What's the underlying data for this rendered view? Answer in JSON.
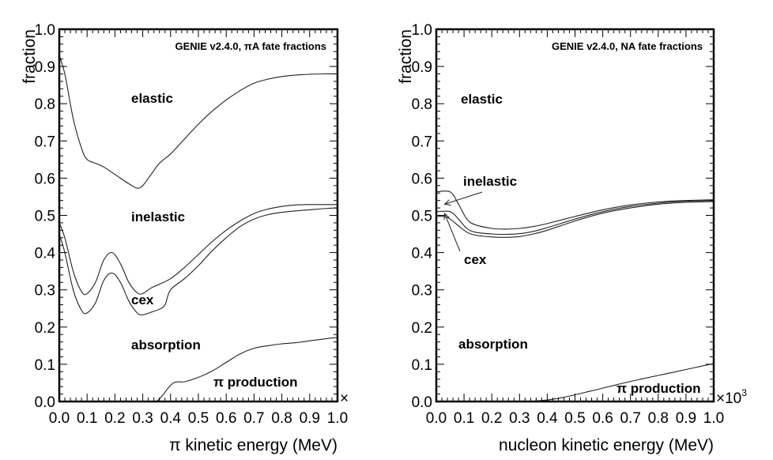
{
  "chart_data": [
    {
      "type": "line",
      "title": "GENIE v2.4.0, πA fate fractions",
      "xlabel": "π kinetic energy (MeV)",
      "ylabel": "fraction",
      "xlim": [
        0.0,
        1.0
      ],
      "ylim": [
        0.0,
        1.0
      ],
      "x_multiplier_label": "×",
      "x_ticks": [
        "0.0",
        "0.1",
        "0.2",
        "0.3",
        "0.4",
        "0.5",
        "0.6",
        "0.7",
        "0.8",
        "0.9",
        "1.0"
      ],
      "y_ticks": [
        "0.0",
        "0.1",
        "0.2",
        "0.3",
        "0.4",
        "0.5",
        "0.6",
        "0.7",
        "0.8",
        "0.9",
        "1.0"
      ],
      "grid": false,
      "region_labels": [
        {
          "text": "elastic",
          "x": 0.17,
          "y": 0.81
        },
        {
          "text": "inelastic",
          "x": 0.17,
          "y": 0.49
        },
        {
          "text": "cex",
          "x": 0.17,
          "y": 0.27
        },
        {
          "text": "absorption",
          "x": 0.17,
          "y": 0.15
        },
        {
          "text": "π production",
          "x": 0.55,
          "y": 0.05
        }
      ],
      "series": [
        {
          "name": "elastic boundary",
          "x": [
            0.0,
            0.02,
            0.05,
            0.08,
            0.1,
            0.13,
            0.16,
            0.2,
            0.25,
            0.28,
            0.3,
            0.33,
            0.36,
            0.4,
            0.45,
            0.5,
            0.55,
            0.6,
            0.65,
            0.7,
            0.75,
            0.8,
            0.85,
            0.9,
            0.95,
            1.0
          ],
          "y": [
            0.93,
            0.88,
            0.76,
            0.68,
            0.65,
            0.64,
            0.63,
            0.61,
            0.585,
            0.573,
            0.58,
            0.61,
            0.64,
            0.665,
            0.705,
            0.745,
            0.78,
            0.81,
            0.835,
            0.855,
            0.866,
            0.873,
            0.877,
            0.879,
            0.88,
            0.88
          ]
        },
        {
          "name": "inelastic boundary",
          "x": [
            0.0,
            0.02,
            0.05,
            0.08,
            0.1,
            0.13,
            0.16,
            0.19,
            0.22,
            0.25,
            0.28,
            0.3,
            0.33,
            0.36,
            0.4,
            0.45,
            0.5,
            0.55,
            0.6,
            0.65,
            0.7,
            0.75,
            0.8,
            0.85,
            0.9,
            0.95,
            1.0
          ],
          "y": [
            0.48,
            0.44,
            0.35,
            0.295,
            0.29,
            0.32,
            0.38,
            0.4,
            0.37,
            0.32,
            0.292,
            0.29,
            0.305,
            0.315,
            0.33,
            0.36,
            0.395,
            0.43,
            0.46,
            0.485,
            0.505,
            0.517,
            0.524,
            0.528,
            0.529,
            0.529,
            0.529
          ]
        },
        {
          "name": "cex boundary",
          "x": [
            0.0,
            0.02,
            0.05,
            0.08,
            0.1,
            0.13,
            0.16,
            0.19,
            0.22,
            0.25,
            0.28,
            0.3,
            0.33,
            0.36,
            0.38,
            0.4,
            0.45,
            0.5,
            0.55,
            0.6,
            0.65,
            0.7,
            0.75,
            0.8,
            0.85,
            0.9,
            0.95,
            1.0
          ],
          "y": [
            0.45,
            0.4,
            0.3,
            0.245,
            0.238,
            0.265,
            0.325,
            0.345,
            0.32,
            0.27,
            0.238,
            0.233,
            0.24,
            0.248,
            0.26,
            0.3,
            0.33,
            0.365,
            0.405,
            0.44,
            0.47,
            0.49,
            0.502,
            0.508,
            0.512,
            0.515,
            0.518,
            0.52
          ]
        },
        {
          "name": "absorption boundary",
          "x": [
            0.35,
            0.37,
            0.39,
            0.41,
            0.43,
            0.45,
            0.5,
            0.55,
            0.6,
            0.65,
            0.7,
            0.75,
            0.8,
            0.85,
            0.9,
            0.95,
            1.0
          ],
          "y": [
            0.0,
            0.015,
            0.035,
            0.05,
            0.053,
            0.053,
            0.065,
            0.082,
            0.105,
            0.128,
            0.143,
            0.15,
            0.155,
            0.158,
            0.163,
            0.168,
            0.172
          ]
        }
      ]
    },
    {
      "type": "line",
      "title": "GENIE v2.4.0, NA fate fractions",
      "xlabel": "nucleon kinetic energy (MeV)",
      "ylabel": "fraction",
      "xlim": [
        0.0,
        1.0
      ],
      "ylim": [
        0.0,
        1.0
      ],
      "x_multiplier_label": "×10",
      "x_multiplier_exponent": "3",
      "x_ticks": [
        "0.0",
        "0.1",
        "0.2",
        "0.3",
        "0.4",
        "0.5",
        "0.6",
        "0.7",
        "0.8",
        "0.9",
        "1.0"
      ],
      "y_ticks": [
        "0.0",
        "0.1",
        "0.2",
        "0.3",
        "0.4",
        "0.5",
        "0.6",
        "0.7",
        "0.8",
        "0.9",
        "1.0"
      ],
      "grid": false,
      "region_labels": [
        {
          "text": "elastic",
          "x": 0.08,
          "y": 0.81
        },
        {
          "text": "inelastic",
          "x": 0.1,
          "y": 0.58
        },
        {
          "text": "cex",
          "x": 0.1,
          "y": 0.38
        },
        {
          "text": "absorption",
          "x": 0.08,
          "y": 0.15
        },
        {
          "text": "π production",
          "x": 0.65,
          "y": 0.035
        }
      ],
      "annotations": [
        {
          "text": "inelastic",
          "arrow_to": [
            0.03,
            0.53
          ]
        },
        {
          "text": "cex",
          "arrow_to": [
            0.03,
            0.505
          ]
        }
      ],
      "series": [
        {
          "name": "elastic boundary",
          "x": [
            0.0,
            0.05,
            0.08,
            0.11,
            0.14,
            0.2,
            0.25,
            0.3,
            0.35,
            0.4,
            0.5,
            0.6,
            0.7,
            0.8,
            0.9,
            1.0
          ],
          "y": [
            0.563,
            0.563,
            0.53,
            0.49,
            0.475,
            0.465,
            0.463,
            0.465,
            0.47,
            0.478,
            0.497,
            0.515,
            0.528,
            0.536,
            0.54,
            0.542
          ]
        },
        {
          "name": "inelastic boundary",
          "x": [
            0.0,
            0.05,
            0.08,
            0.11,
            0.14,
            0.2,
            0.25,
            0.3,
            0.35,
            0.4,
            0.5,
            0.6,
            0.7,
            0.8,
            0.9,
            1.0
          ],
          "y": [
            0.51,
            0.51,
            0.49,
            0.465,
            0.455,
            0.45,
            0.449,
            0.451,
            0.457,
            0.467,
            0.49,
            0.51,
            0.524,
            0.533,
            0.538,
            0.54
          ]
        },
        {
          "name": "cex boundary",
          "x": [
            0.0,
            0.03,
            0.05,
            0.08,
            0.11,
            0.14,
            0.2,
            0.25,
            0.3,
            0.35,
            0.4,
            0.5,
            0.6,
            0.7,
            0.8,
            0.9,
            1.0
          ],
          "y": [
            0.497,
            0.497,
            0.49,
            0.472,
            0.455,
            0.447,
            0.442,
            0.441,
            0.443,
            0.45,
            0.46,
            0.485,
            0.506,
            0.52,
            0.53,
            0.535,
            0.537
          ]
        },
        {
          "name": "absorption boundary",
          "x": [
            0.3,
            0.35,
            0.4,
            0.45,
            0.5,
            0.55,
            0.6,
            0.65,
            0.7,
            0.75,
            0.8,
            0.85,
            0.9,
            0.95,
            1.0
          ],
          "y": [
            0.0,
            0.001,
            0.004,
            0.01,
            0.018,
            0.027,
            0.036,
            0.045,
            0.054,
            0.062,
            0.07,
            0.078,
            0.086,
            0.094,
            0.102
          ]
        }
      ]
    }
  ]
}
